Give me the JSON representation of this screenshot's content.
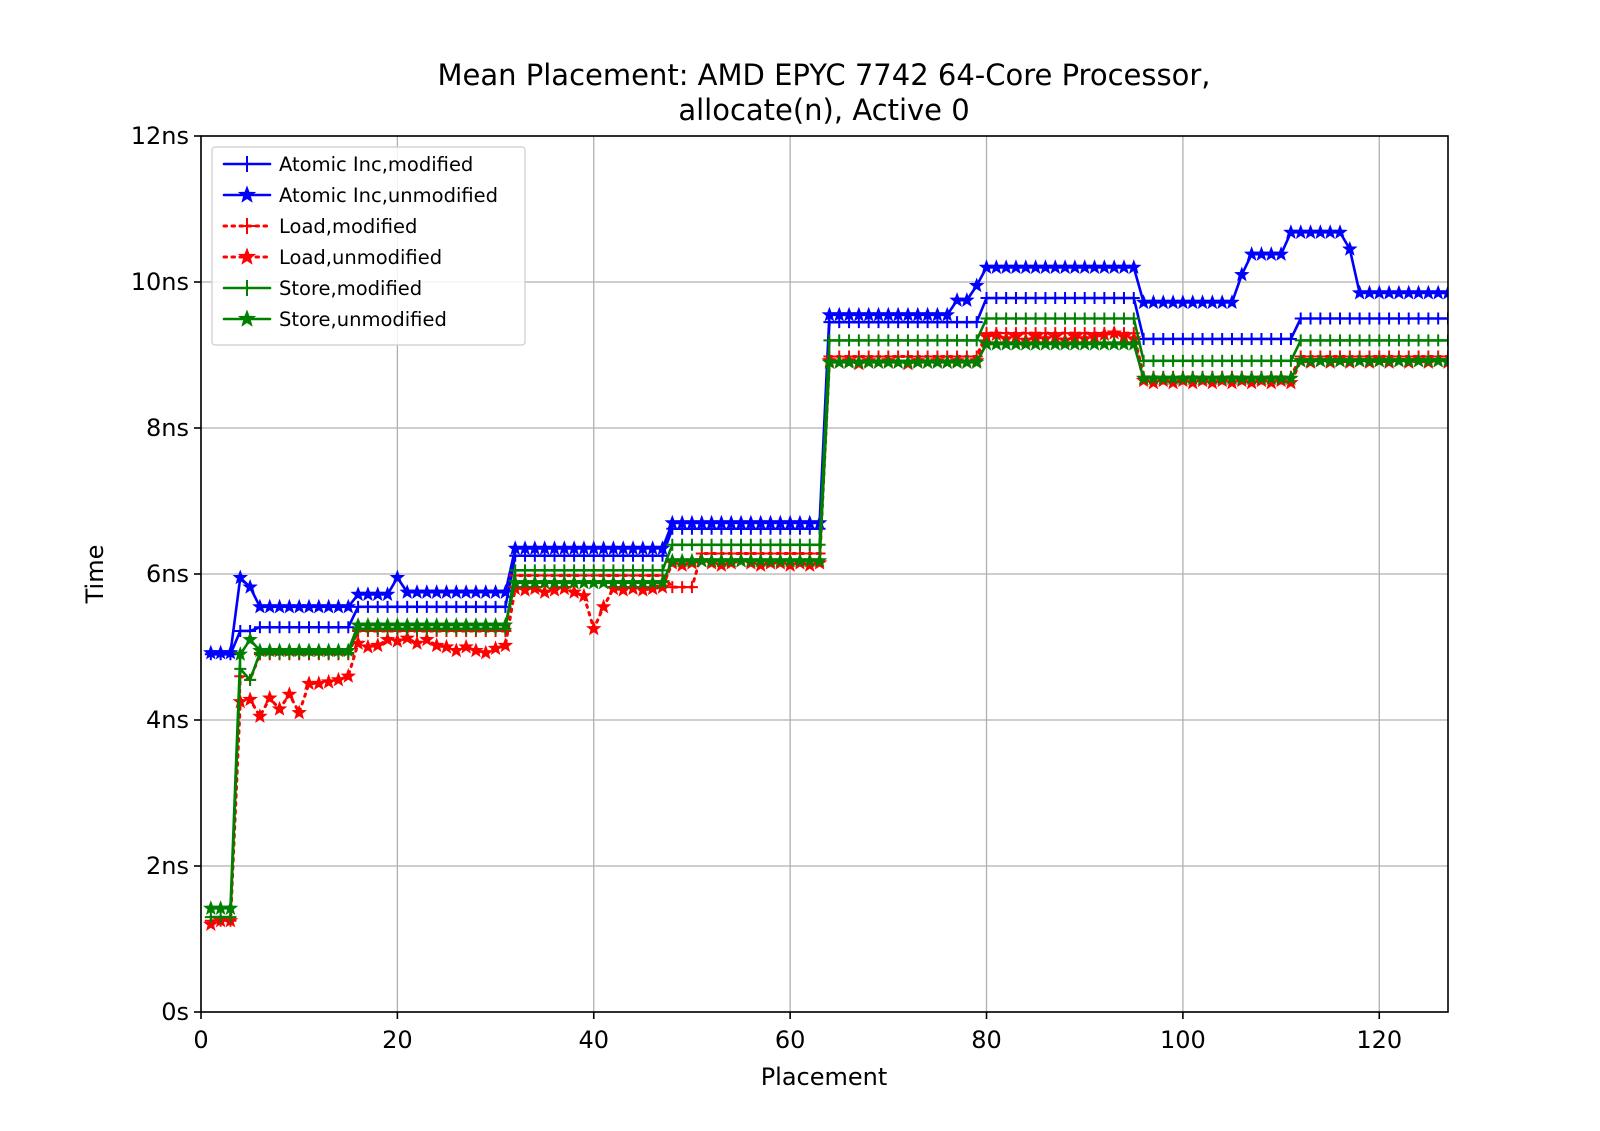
{
  "chart_data": {
    "type": "line",
    "title": "Mean Placement: AMD EPYC 7742 64-Core Processor,",
    "subtitle": "allocate(n), Active 0",
    "xlabel": "Placement",
    "ylabel": "Time",
    "xlim": [
      0,
      127
    ],
    "ylim": [
      0,
      12
    ],
    "x_ticks": [
      0,
      20,
      40,
      60,
      80,
      100,
      120
    ],
    "x_tick_labels": [
      "0",
      "20",
      "40",
      "60",
      "80",
      "100",
      "120"
    ],
    "y_ticks": [
      0,
      2,
      4,
      6,
      8,
      10,
      12
    ],
    "y_tick_labels": [
      "0s",
      "2ns",
      "4ns",
      "6ns",
      "8ns",
      "10ns",
      "12ns"
    ],
    "grid": true,
    "legend_position": "top-left",
    "x_range": [
      1,
      127
    ],
    "series": [
      {
        "name": "Atomic Inc,modified",
        "color": "#0000ff",
        "linestyle": "solid",
        "marker": "plus",
        "segments": [
          [
            1,
            3,
            4.9
          ],
          [
            4,
            5,
            5.22
          ],
          [
            6,
            15,
            5.27
          ],
          [
            16,
            31,
            5.55
          ],
          [
            32,
            47,
            6.25
          ],
          [
            48,
            63,
            6.62
          ],
          [
            64,
            79,
            9.45
          ],
          [
            80,
            95,
            9.78
          ],
          [
            96,
            111,
            9.22
          ],
          [
            112,
            127,
            9.5
          ]
        ]
      },
      {
        "name": "Atomic Inc,unmodified",
        "color": "#0000ff",
        "linestyle": "solid",
        "marker": "star",
        "segments": [
          [
            1,
            3,
            4.92
          ],
          [
            4,
            4,
            5.95
          ],
          [
            5,
            5,
            5.82
          ],
          [
            6,
            15,
            5.55
          ],
          [
            16,
            19,
            5.72
          ],
          [
            20,
            20,
            5.95
          ],
          [
            21,
            31,
            5.75
          ],
          [
            32,
            47,
            6.35
          ],
          [
            48,
            63,
            6.7
          ],
          [
            64,
            76,
            9.55
          ],
          [
            77,
            78,
            9.75
          ],
          [
            79,
            79,
            9.95
          ],
          [
            80,
            95,
            10.2
          ],
          [
            96,
            105,
            9.72
          ],
          [
            106,
            106,
            10.1
          ],
          [
            107,
            110,
            10.38
          ],
          [
            111,
            116,
            10.68
          ],
          [
            117,
            117,
            10.45
          ],
          [
            118,
            127,
            9.85
          ]
        ]
      },
      {
        "name": "Load,modified",
        "color": "#ff0000",
        "linestyle": "dotted",
        "marker": "plus",
        "segments": [
          [
            1,
            3,
            1.25
          ],
          [
            4,
            4,
            4.6
          ],
          [
            5,
            5,
            4.55
          ],
          [
            6,
            15,
            4.9
          ],
          [
            16,
            31,
            5.22
          ],
          [
            32,
            47,
            5.98
          ],
          [
            48,
            50,
            5.82
          ],
          [
            51,
            63,
            6.28
          ],
          [
            64,
            79,
            8.98
          ],
          [
            80,
            95,
            9.3
          ],
          [
            96,
            111,
            8.7
          ],
          [
            112,
            127,
            8.98
          ]
        ]
      },
      {
        "name": "Load,unmodified",
        "color": "#ff0000",
        "linestyle": "dotted",
        "marker": "star",
        "points": [
          [
            1,
            1.2
          ],
          [
            2,
            1.25
          ],
          [
            3,
            1.25
          ],
          [
            4,
            4.25
          ],
          [
            5,
            4.28
          ],
          [
            6,
            4.05
          ],
          [
            7,
            4.3
          ],
          [
            8,
            4.15
          ],
          [
            9,
            4.35
          ],
          [
            10,
            4.1
          ],
          [
            11,
            4.5
          ],
          [
            12,
            4.5
          ],
          [
            13,
            4.52
          ],
          [
            14,
            4.55
          ],
          [
            15,
            4.6
          ],
          [
            16,
            5.05
          ],
          [
            17,
            5.0
          ],
          [
            18,
            5.02
          ],
          [
            19,
            5.1
          ],
          [
            20,
            5.08
          ],
          [
            21,
            5.12
          ],
          [
            22,
            5.05
          ],
          [
            23,
            5.1
          ],
          [
            24,
            5.02
          ],
          [
            25,
            5.0
          ],
          [
            26,
            4.95
          ],
          [
            27,
            5.0
          ],
          [
            28,
            4.95
          ],
          [
            29,
            4.92
          ],
          [
            30,
            4.98
          ],
          [
            31,
            5.02
          ],
          [
            32,
            5.8
          ],
          [
            33,
            5.78
          ],
          [
            34,
            5.8
          ],
          [
            35,
            5.75
          ],
          [
            36,
            5.78
          ],
          [
            37,
            5.8
          ],
          [
            38,
            5.75
          ],
          [
            39,
            5.7
          ],
          [
            40,
            5.25
          ],
          [
            41,
            5.55
          ],
          [
            42,
            5.8
          ],
          [
            43,
            5.78
          ],
          [
            44,
            5.8
          ],
          [
            45,
            5.78
          ],
          [
            46,
            5.8
          ],
          [
            47,
            5.82
          ],
          [
            48,
            6.15
          ],
          [
            49,
            6.12
          ],
          [
            50,
            6.15
          ],
          [
            51,
            6.18
          ],
          [
            52,
            6.15
          ],
          [
            53,
            6.12
          ],
          [
            54,
            6.15
          ],
          [
            55,
            6.18
          ],
          [
            56,
            6.15
          ],
          [
            57,
            6.12
          ],
          [
            58,
            6.15
          ],
          [
            59,
            6.15
          ],
          [
            60,
            6.12
          ],
          [
            61,
            6.15
          ],
          [
            62,
            6.12
          ],
          [
            63,
            6.15
          ],
          [
            64,
            8.92
          ],
          [
            65,
            8.9
          ],
          [
            66,
            8.92
          ],
          [
            67,
            8.88
          ],
          [
            68,
            8.92
          ],
          [
            69,
            8.9
          ],
          [
            70,
            8.92
          ],
          [
            71,
            8.9
          ],
          [
            72,
            8.88
          ],
          [
            73,
            8.92
          ],
          [
            74,
            8.9
          ],
          [
            75,
            8.92
          ],
          [
            76,
            8.9
          ],
          [
            77,
            8.92
          ],
          [
            78,
            8.9
          ],
          [
            79,
            8.92
          ],
          [
            80,
            9.25
          ],
          [
            81,
            9.28
          ],
          [
            82,
            9.22
          ],
          [
            83,
            9.25
          ],
          [
            84,
            9.2
          ],
          [
            85,
            9.25
          ],
          [
            86,
            9.22
          ],
          [
            87,
            9.25
          ],
          [
            88,
            9.2
          ],
          [
            89,
            9.25
          ],
          [
            90,
            9.22
          ],
          [
            91,
            9.25
          ],
          [
            92,
            9.28
          ],
          [
            93,
            9.3
          ],
          [
            94,
            9.25
          ],
          [
            95,
            9.22
          ],
          [
            96,
            8.65
          ],
          [
            97,
            8.62
          ],
          [
            98,
            8.65
          ],
          [
            99,
            8.62
          ],
          [
            100,
            8.65
          ],
          [
            101,
            8.62
          ],
          [
            102,
            8.65
          ],
          [
            103,
            8.62
          ],
          [
            104,
            8.65
          ],
          [
            105,
            8.62
          ],
          [
            106,
            8.65
          ],
          [
            107,
            8.62
          ],
          [
            108,
            8.65
          ],
          [
            109,
            8.62
          ],
          [
            110,
            8.65
          ],
          [
            111,
            8.62
          ],
          [
            112,
            8.92
          ],
          [
            113,
            8.9
          ],
          [
            114,
            8.92
          ],
          [
            115,
            8.9
          ],
          [
            116,
            8.92
          ],
          [
            117,
            8.9
          ],
          [
            118,
            8.92
          ],
          [
            119,
            8.9
          ],
          [
            120,
            8.92
          ],
          [
            121,
            8.9
          ],
          [
            122,
            8.92
          ],
          [
            123,
            8.9
          ],
          [
            124,
            8.92
          ],
          [
            125,
            8.9
          ],
          [
            126,
            8.92
          ],
          [
            127,
            8.9
          ]
        ]
      },
      {
        "name": "Store,modified",
        "color": "#008000",
        "linestyle": "solid",
        "marker": "plus",
        "segments": [
          [
            1,
            3,
            1.3
          ],
          [
            4,
            4,
            4.7
          ],
          [
            5,
            5,
            4.55
          ],
          [
            6,
            15,
            4.92
          ],
          [
            16,
            31,
            5.25
          ],
          [
            32,
            47,
            6.05
          ],
          [
            48,
            63,
            6.4
          ],
          [
            64,
            79,
            9.2
          ],
          [
            80,
            95,
            9.5
          ],
          [
            96,
            111,
            8.92
          ],
          [
            112,
            127,
            9.2
          ]
        ]
      },
      {
        "name": "Store,unmodified",
        "color": "#008000",
        "linestyle": "solid",
        "marker": "star",
        "segments": [
          [
            1,
            3,
            1.42
          ],
          [
            4,
            4,
            4.9
          ],
          [
            5,
            5,
            5.1
          ],
          [
            6,
            15,
            4.95
          ],
          [
            16,
            31,
            5.3
          ],
          [
            32,
            47,
            5.88
          ],
          [
            48,
            63,
            6.18
          ],
          [
            64,
            79,
            8.9
          ],
          [
            80,
            95,
            9.15
          ],
          [
            96,
            111,
            8.68
          ],
          [
            112,
            127,
            8.92
          ]
        ]
      }
    ]
  }
}
